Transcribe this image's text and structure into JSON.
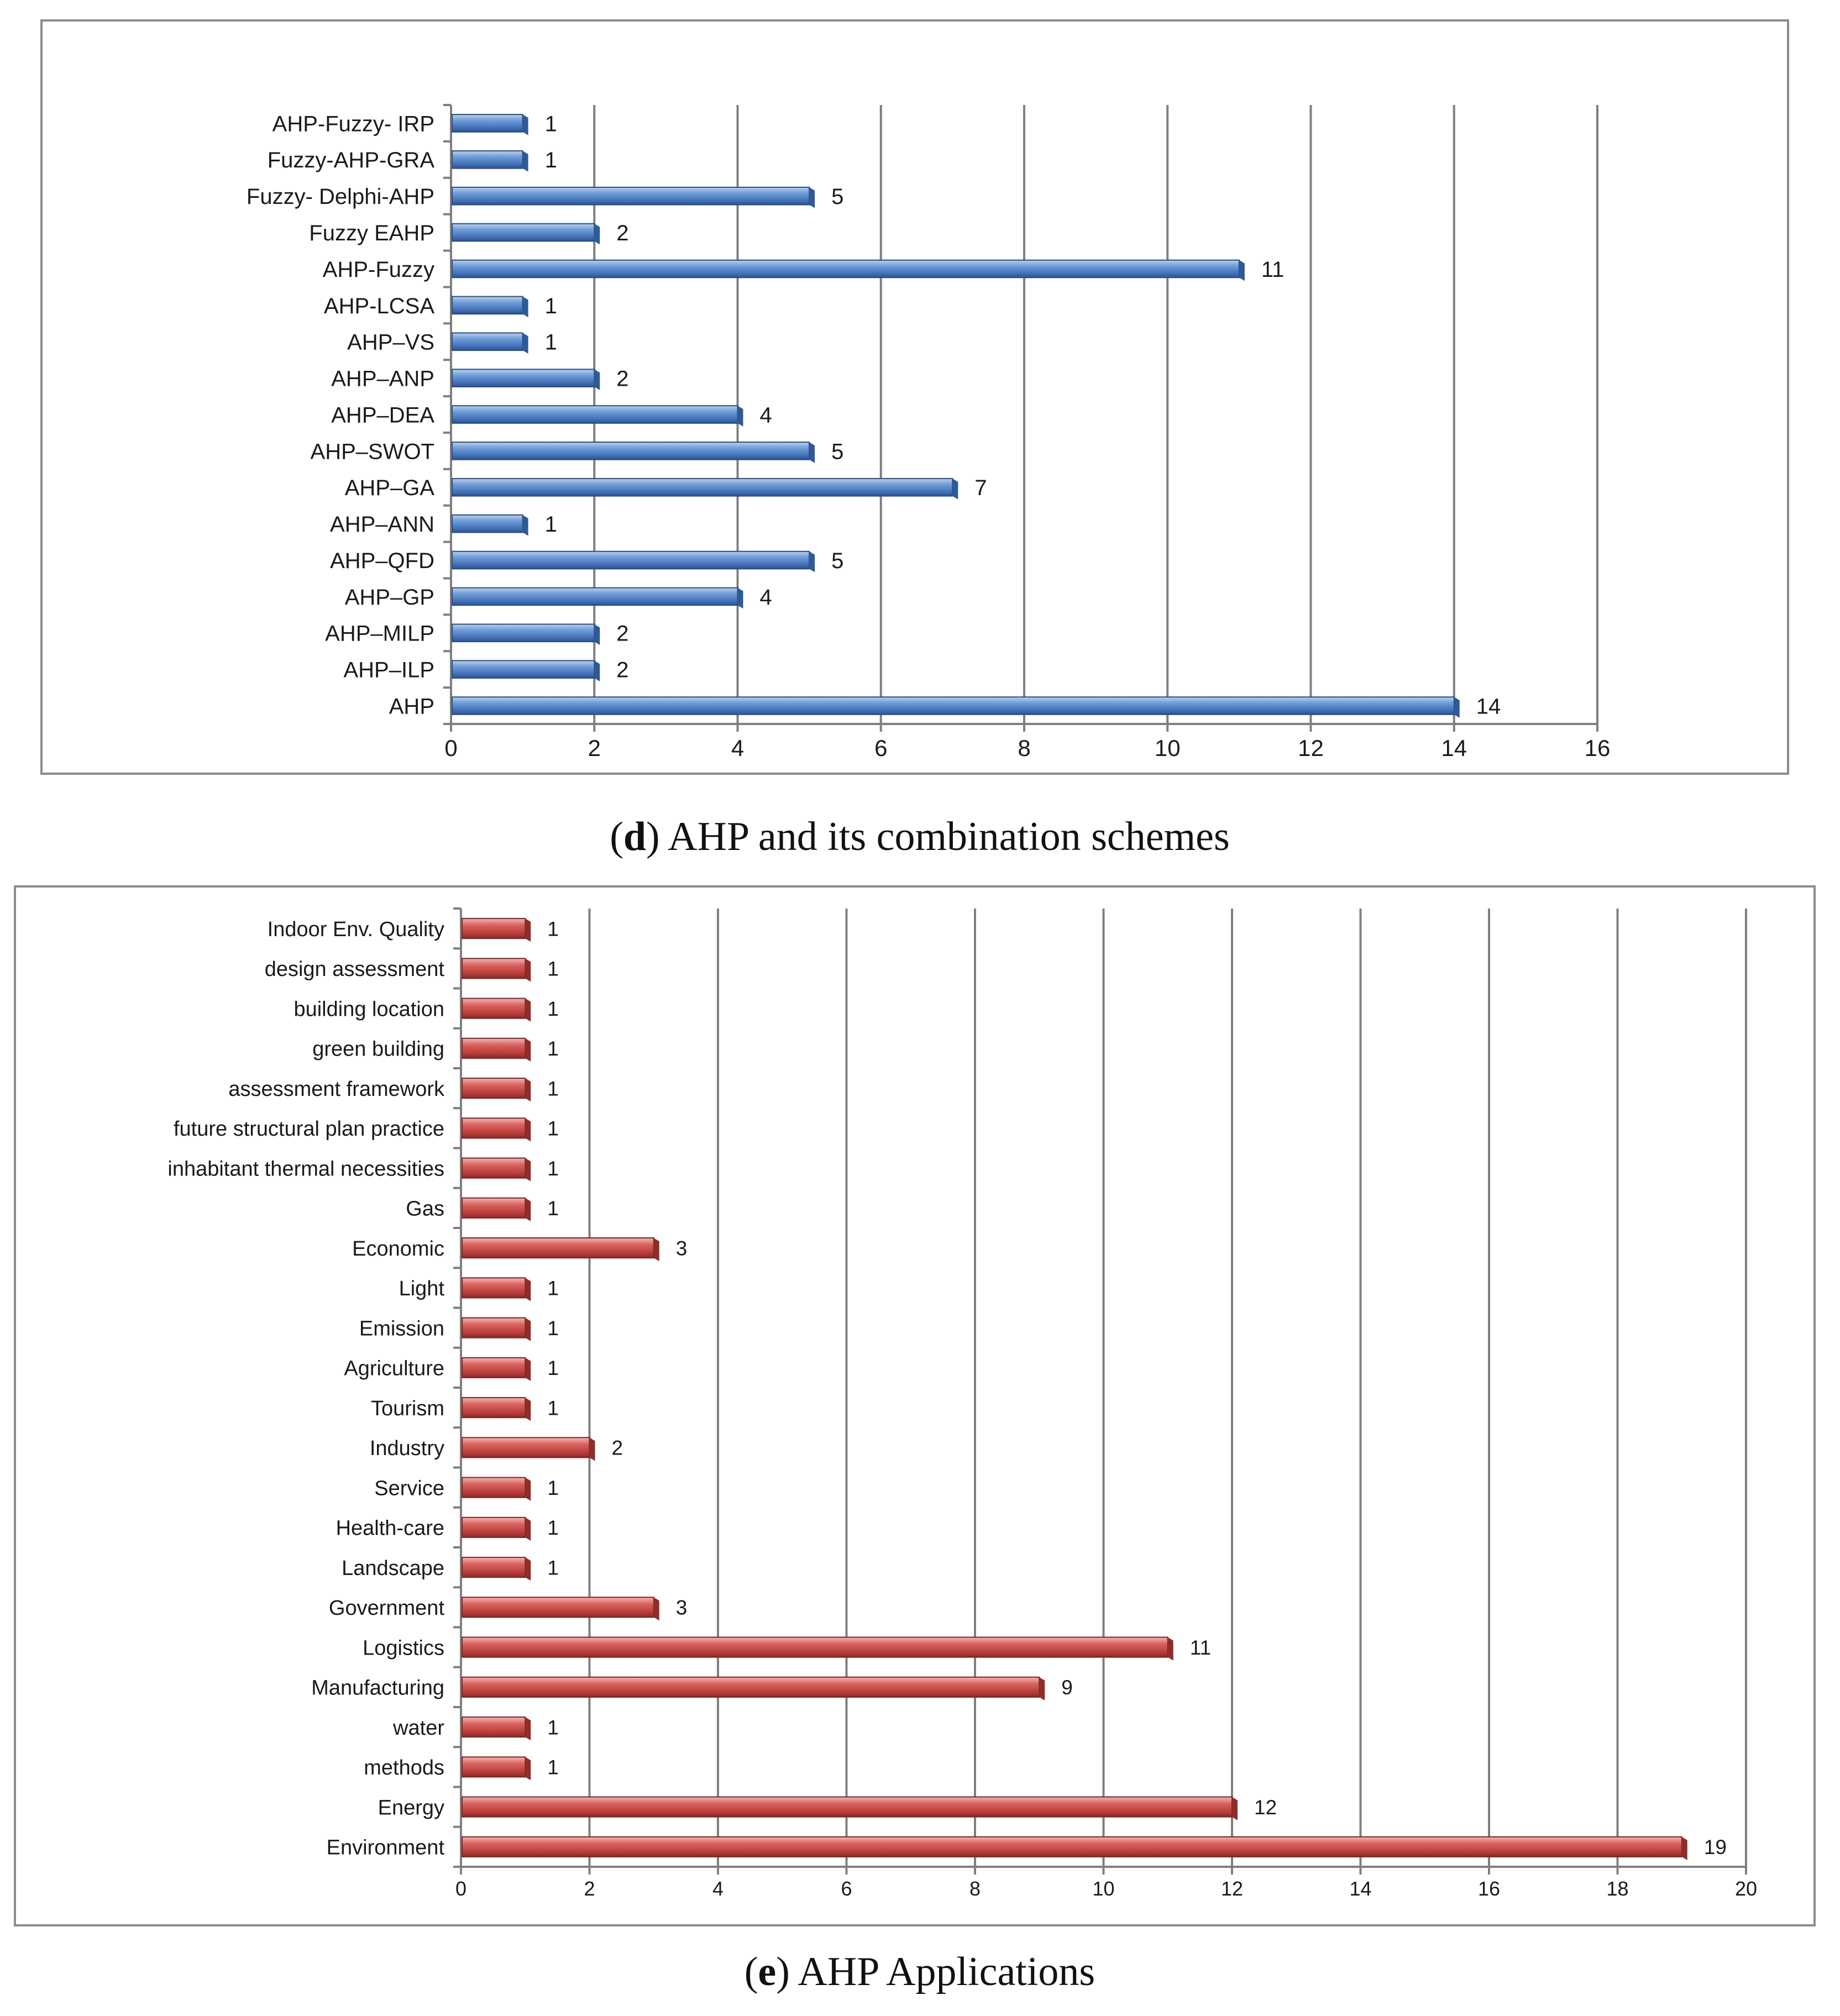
{
  "chart_data": [
    {
      "type": "bar",
      "orientation": "horizontal",
      "title": "",
      "caption_letter": "d",
      "caption_text": " AHP and its combination schemes",
      "categories": [
        "AHP-Fuzzy- IRP",
        "Fuzzy-AHP-GRA",
        "Fuzzy- Delphi-AHP",
        "Fuzzy EAHP",
        "AHP-Fuzzy",
        "AHP-LCSA",
        "AHP–VS",
        "AHP–ANP",
        "AHP–DEA",
        "AHP–SWOT",
        "AHP–GA",
        "AHP–ANN",
        "AHP–QFD",
        "AHP–GP",
        "AHP–MILP",
        "AHP–ILP",
        "AHP"
      ],
      "values": [
        1,
        1,
        5,
        2,
        11,
        1,
        1,
        2,
        4,
        5,
        7,
        1,
        5,
        4,
        2,
        2,
        14
      ],
      "data_labels": [
        "1",
        "1",
        "5",
        "2",
        "11",
        "1",
        "1",
        "2",
        "4",
        "5",
        "7",
        "1",
        "5",
        "4",
        "2",
        "2",
        "14"
      ],
      "xlim": [
        0,
        16
      ],
      "xticks": [
        "0",
        "2",
        "4",
        "6",
        "8",
        "10",
        "12",
        "14",
        "16"
      ],
      "xlabel": "",
      "ylabel": "",
      "grid": "vertical",
      "bar_color": "#4F81BD"
    },
    {
      "type": "bar",
      "orientation": "horizontal",
      "title": "",
      "caption_letter": "e",
      "caption_text": " AHP Applications",
      "categories": [
        "Indoor Env. Quality",
        "design assessment",
        "building location",
        "green building",
        "assessment framework",
        "future structural plan practice",
        "inhabitant thermal  necessities",
        "Gas",
        "Economic",
        "Light",
        "Emission",
        "Agriculture",
        "Tourism",
        "Industry",
        "Service",
        "Health-care",
        "Landscape",
        "Government",
        "Logistics",
        "Manufacturing",
        "water",
        "methods",
        "Energy",
        "Environment"
      ],
      "values": [
        1,
        1,
        1,
        1,
        1,
        1,
        1,
        1,
        3,
        1,
        1,
        1,
        1,
        2,
        1,
        1,
        1,
        3,
        11,
        9,
        1,
        1,
        12,
        19
      ],
      "data_labels": [
        "1",
        "1",
        "1",
        "1",
        "1",
        "1",
        "1",
        "1",
        "3",
        "1",
        "1",
        "1",
        "1",
        "2",
        "1",
        "1",
        "1",
        "3",
        "11",
        "9",
        "1",
        "1",
        "12",
        "19"
      ],
      "xlim": [
        0,
        20
      ],
      "xticks": [
        "0",
        "2",
        "4",
        "6",
        "8",
        "10",
        "12",
        "14",
        "16",
        "18",
        "20"
      ],
      "xlabel": "",
      "ylabel": "",
      "grid": "vertical",
      "bar_color": "#C0504D"
    }
  ]
}
